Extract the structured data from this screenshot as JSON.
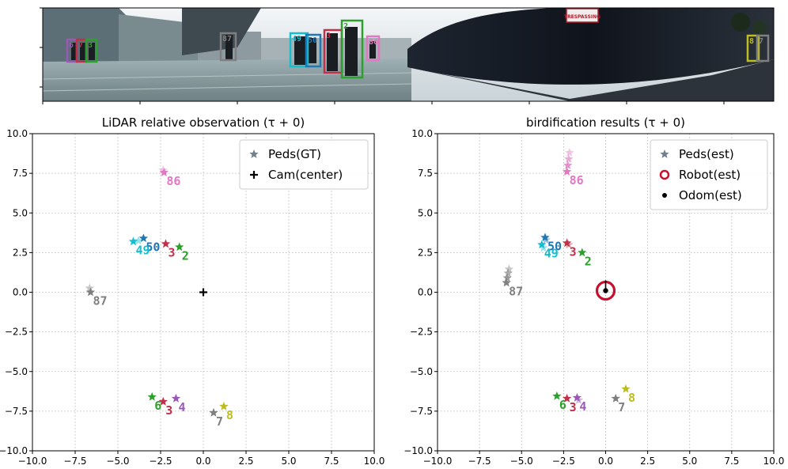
{
  "camera_strip": {
    "description_colors": {
      "sky": "#e8edf2",
      "ground": "#8fa3a8",
      "wall": "#151a22"
    },
    "sign_text": "TRESPASSING",
    "boxes": [
      {
        "label": "6",
        "color": "#9b59b6"
      },
      {
        "label": "7",
        "color": "#c0304a"
      },
      {
        "label": "3",
        "color": "#2ca02c"
      },
      {
        "label": "87",
        "color": "#7f7f7f"
      },
      {
        "label": "49",
        "color": "#17becf"
      },
      {
        "label": "50",
        "color": "#1f77b4"
      },
      {
        "label": "3",
        "color": "#c0304a"
      },
      {
        "label": "2",
        "color": "#2ca02c"
      },
      {
        "label": "86",
        "color": "#e377c2"
      },
      {
        "label": "8",
        "color": "#bcbd22"
      },
      {
        "label": "7",
        "color": "#7f7f7f"
      }
    ]
  },
  "chart_data": [
    {
      "type": "scatter",
      "title": "LiDAR relative observation (τ + 0)",
      "xlim": [
        -10,
        10
      ],
      "ylim": [
        -10,
        10
      ],
      "xticks": [
        -10,
        -7.5,
        -5,
        -2.5,
        0,
        2.5,
        5,
        7.5,
        10
      ],
      "yticks": [
        -10,
        -7.5,
        -5,
        -2.5,
        0,
        2.5,
        5,
        7.5,
        10
      ],
      "xtick_labels": [
        "−10.0",
        "−7.5",
        "−5.0",
        "−2.5",
        "0.0",
        "2.5",
        "5.0",
        "7.5",
        "10.0"
      ],
      "ytick_labels": [
        "−10.0",
        "−7.5",
        "−5.0",
        "−2.5",
        "0.0",
        "2.5",
        "5.0",
        "7.5",
        "10.0"
      ],
      "grid": true,
      "legend_position": "top-right",
      "legend": [
        {
          "label": "Peds(GT)",
          "marker": "star",
          "color": "#708090"
        },
        {
          "label": "Cam(center)",
          "marker": "plus",
          "color": "#000000"
        }
      ],
      "peds": [
        {
          "id": "86",
          "color": "#e377c2",
          "points": [
            [
              -2.3,
              7.55
            ],
            [
              -2.35,
              7.7
            ]
          ]
        },
        {
          "id": "50",
          "color": "#1f77b4",
          "points": [
            [
              -3.5,
              3.4
            ]
          ]
        },
        {
          "id": "49",
          "color": "#17becf",
          "points": [
            [
              -4.1,
              3.2
            ],
            [
              -3.8,
              3.25
            ]
          ]
        },
        {
          "id": "3",
          "color": "#c0304a",
          "points": [
            [
              -2.2,
              3.05
            ]
          ]
        },
        {
          "id": "2",
          "color": "#2ca02c",
          "points": [
            [
              -1.4,
              2.85
            ]
          ]
        },
        {
          "id": "87",
          "color": "#7f7f7f",
          "points": [
            [
              -6.6,
              0.0
            ],
            [
              -6.65,
              0.25
            ]
          ]
        },
        {
          "id": "6",
          "color": "#2ca02c",
          "points": [
            [
              -3.0,
              -6.6
            ]
          ]
        },
        {
          "id": "3",
          "color": "#c0304a",
          "points": [
            [
              -2.35,
              -6.9
            ]
          ]
        },
        {
          "id": "4",
          "color": "#9b59b6",
          "points": [
            [
              -1.6,
              -6.7
            ]
          ]
        },
        {
          "id": "7",
          "color": "#7f7f7f",
          "points": [
            [
              0.6,
              -7.6
            ]
          ]
        },
        {
          "id": "8",
          "color": "#bcbd22",
          "points": [
            [
              1.2,
              -7.2
            ]
          ]
        }
      ],
      "cam_center": [
        0,
        0
      ]
    },
    {
      "type": "scatter",
      "title": "birdification results (τ + 0)",
      "xlim": [
        -10,
        10
      ],
      "ylim": [
        -10,
        10
      ],
      "xticks": [
        -10,
        -7.5,
        -5,
        -2.5,
        0,
        2.5,
        5,
        7.5,
        10
      ],
      "yticks": [
        -10,
        -7.5,
        -5,
        -2.5,
        0,
        2.5,
        5,
        7.5,
        10
      ],
      "xtick_labels": [
        "−10.0",
        "−7.5",
        "−5.0",
        "−2.5",
        "0.0",
        "2.5",
        "5.0",
        "7.5",
        "10.0"
      ],
      "ytick_labels": [
        "−10.0",
        "−7.5",
        "−5.0",
        "−2.5",
        "0.0",
        "2.5",
        "5.0",
        "7.5",
        "10.0"
      ],
      "grid": true,
      "legend_position": "top-right",
      "legend": [
        {
          "label": "Peds(est)",
          "marker": "star",
          "color": "#708090"
        },
        {
          "label": "Robot(est)",
          "marker": "ring",
          "color": "#c8102e"
        },
        {
          "label": "Odom(est)",
          "marker": "dot",
          "color": "#000000"
        }
      ],
      "peds": [
        {
          "id": "86",
          "color": "#e377c2",
          "points": [
            [
              -2.3,
              7.6
            ],
            [
              -2.25,
              8.0
            ],
            [
              -2.2,
              8.4
            ],
            [
              -2.15,
              8.8
            ]
          ]
        },
        {
          "id": "50",
          "color": "#1f77b4",
          "points": [
            [
              -3.6,
              3.45
            ],
            [
              -3.55,
              3.3
            ]
          ]
        },
        {
          "id": "49",
          "color": "#17becf",
          "points": [
            [
              -3.8,
              3.0
            ],
            [
              -3.7,
              2.8
            ]
          ]
        },
        {
          "id": "3",
          "color": "#c0304a",
          "points": [
            [
              -2.3,
              3.1
            ],
            [
              -2.2,
              3.0
            ]
          ]
        },
        {
          "id": "2",
          "color": "#2ca02c",
          "points": [
            [
              -1.4,
              2.5
            ]
          ]
        },
        {
          "id": "87",
          "color": "#7f7f7f",
          "points": [
            [
              -5.9,
              0.6
            ],
            [
              -5.85,
              0.9
            ],
            [
              -5.8,
              1.2
            ],
            [
              -5.75,
              1.45
            ]
          ]
        },
        {
          "id": "6",
          "color": "#2ca02c",
          "points": [
            [
              -2.9,
              -6.55
            ]
          ]
        },
        {
          "id": "3",
          "color": "#c0304a",
          "points": [
            [
              -2.3,
              -6.7
            ]
          ]
        },
        {
          "id": "4",
          "color": "#9b59b6",
          "points": [
            [
              -1.7,
              -6.65
            ],
            [
              -1.6,
              -6.8
            ]
          ]
        },
        {
          "id": "7",
          "color": "#7f7f7f",
          "points": [
            [
              0.6,
              -6.7
            ]
          ]
        },
        {
          "id": "8",
          "color": "#bcbd22",
          "points": [
            [
              1.2,
              -6.1
            ]
          ]
        }
      ],
      "robot": [
        0,
        0.1
      ],
      "odom": [
        0,
        0.1
      ]
    }
  ]
}
